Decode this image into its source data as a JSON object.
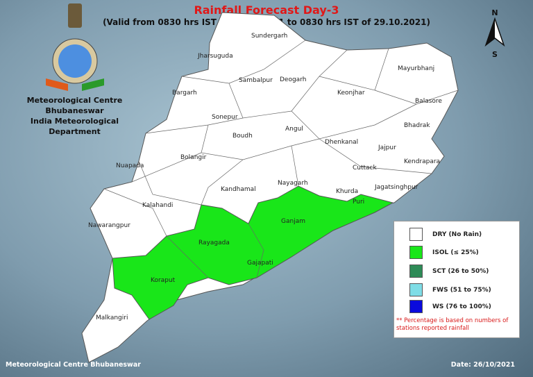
{
  "title": "Rainfall Forecast Day-3",
  "subtitle": "(Valid from 0830 hrs IST of 28.10.2021 to 0830 hrs IST of 29.10.2021)",
  "org": {
    "line1": "Meteorological Centre Bhubaneswar",
    "line2": "India Meteorological Department"
  },
  "north": {
    "n": "N",
    "s": "S"
  },
  "districts": {
    "sundergarh": "Sundergarh",
    "mayurbhanj": "Mayurbhanj",
    "jharsuguda": "Jharsuguda",
    "sambalpur": "Sambalpur",
    "deogarh": "Deogarh",
    "keonjhar": "Keonjhar",
    "balasore": "Balasore",
    "bargarh": "Bargarh",
    "bhadrak": "Bhadrak",
    "angul": "Angul",
    "sonepur": "Sonepur",
    "dhenkanal": "Dhenkanal",
    "jajpur": "Jajpur",
    "boudh": "Boudh",
    "bolangir": "Bolangir",
    "kendrapara": "Kendrapara",
    "nuapada": "Nuapada",
    "cuttack": "Cuttack",
    "jagatsinghpur": "Jagatsinghpur",
    "kandhamal": "Kandhamal",
    "nayagarh": "Nayagarh",
    "khurda": "Khurda",
    "kalahandi": "Kalahandi",
    "puri": "Puri",
    "ganjam": "Ganjam",
    "nawarangpur": "Nawarangpur",
    "rayagada": "Rayagada",
    "gajapati": "Gajapati",
    "koraput": "Koraput",
    "malkangiri": "Malkangiri"
  },
  "legend": {
    "items": [
      {
        "label": "DRY (No Rain)",
        "color": "#ffffff"
      },
      {
        "label": "ISOL (≤ 25%)",
        "color": "#19e619"
      },
      {
        "label": "SCT (26 to 50%)",
        "color": "#2e8b57"
      },
      {
        "label": "FWS (51 to 75%)",
        "color": "#7fdde6"
      },
      {
        "label": "WS (76 to 100%)",
        "color": "#0a0adc"
      }
    ],
    "note": "** Percentage is based on numbers of stations reported rainfall"
  },
  "footer": {
    "left": "Meteorological Centre Bhubaneswar",
    "right": "Date: 26/10/2021"
  }
}
